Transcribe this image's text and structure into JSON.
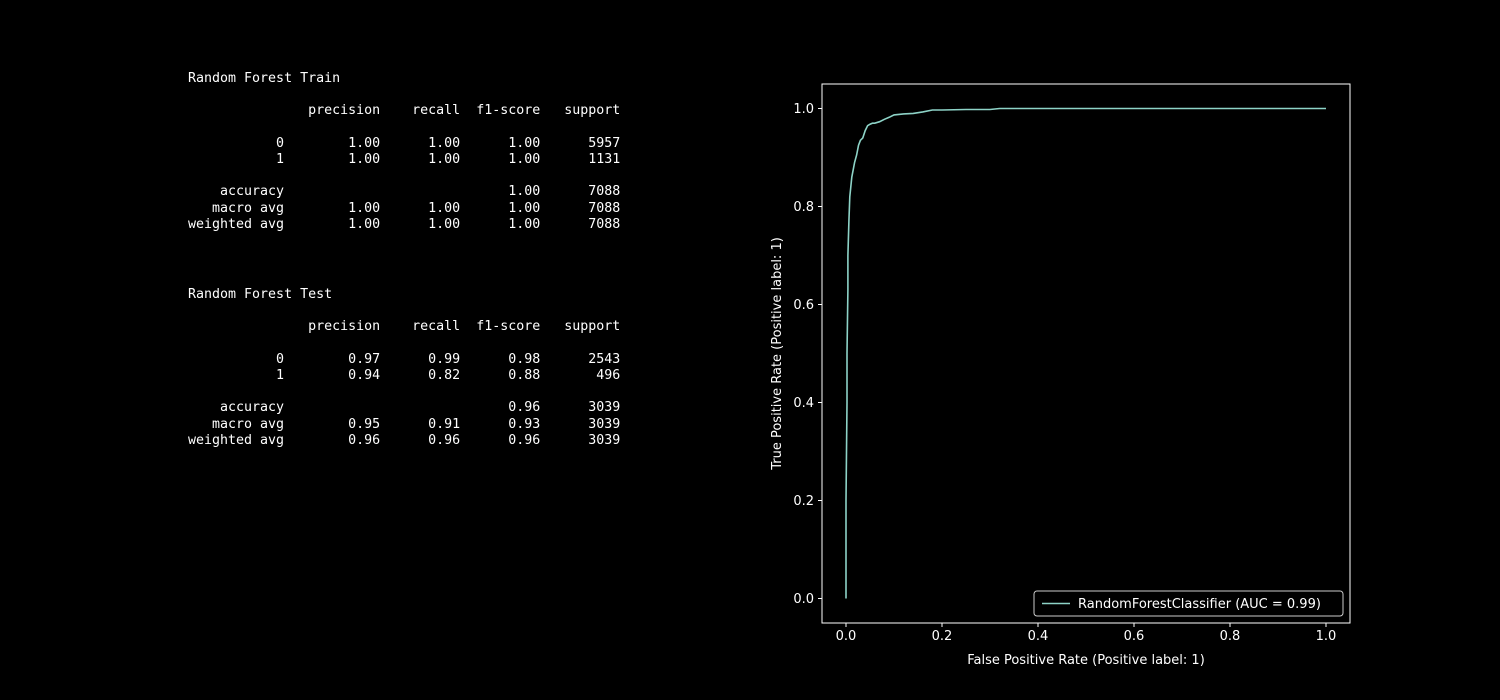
{
  "reports": [
    {
      "title": "Random Forest Train",
      "header": [
        "precision",
        "recall",
        "f1-score",
        "support"
      ],
      "rows": [
        {
          "label": "0",
          "precision": "1.00",
          "recall": "1.00",
          "f1": "1.00",
          "support": "5957"
        },
        {
          "label": "1",
          "precision": "1.00",
          "recall": "1.00",
          "f1": "1.00",
          "support": "1131"
        },
        null,
        {
          "label": "accuracy",
          "precision": "",
          "recall": "",
          "f1": "1.00",
          "support": "7088"
        },
        {
          "label": "macro avg",
          "precision": "1.00",
          "recall": "1.00",
          "f1": "1.00",
          "support": "7088"
        },
        {
          "label": "weighted avg",
          "precision": "1.00",
          "recall": "1.00",
          "f1": "1.00",
          "support": "7088"
        }
      ]
    },
    {
      "title": "Random Forest Test",
      "header": [
        "precision",
        "recall",
        "f1-score",
        "support"
      ],
      "rows": [
        {
          "label": "0",
          "precision": "0.97",
          "recall": "0.99",
          "f1": "0.98",
          "support": "2543"
        },
        {
          "label": "1",
          "precision": "0.94",
          "recall": "0.82",
          "f1": "0.88",
          "support": "496"
        },
        null,
        {
          "label": "accuracy",
          "precision": "",
          "recall": "",
          "f1": "0.96",
          "support": "3039"
        },
        {
          "label": "macro avg",
          "precision": "0.95",
          "recall": "0.91",
          "f1": "0.93",
          "support": "3039"
        },
        {
          "label": "weighted avg",
          "precision": "0.96",
          "recall": "0.96",
          "f1": "0.96",
          "support": "3039"
        }
      ]
    }
  ],
  "chart_data": {
    "type": "line",
    "xlabel": "False Positive Rate (Positive label: 1)",
    "ylabel": "True Positive Rate (Positive label: 1)",
    "xlim": [
      -0.05,
      1.05
    ],
    "ylim": [
      -0.05,
      1.05
    ],
    "xticks": [
      "0.0",
      "0.2",
      "0.4",
      "0.6",
      "0.8",
      "1.0"
    ],
    "yticks": [
      "0.0",
      "0.2",
      "0.4",
      "0.6",
      "0.8",
      "1.0"
    ],
    "grid": false,
    "legend_position": "lower-right",
    "series": [
      {
        "name": "RandomForestClassifier (AUC = 0.99)",
        "color": "#8dd3c7",
        "x": [
          0.0,
          0.0,
          0.002,
          0.002,
          0.004,
          0.004,
          0.006,
          0.008,
          0.01,
          0.012,
          0.015,
          0.018,
          0.022,
          0.026,
          0.03,
          0.035,
          0.04,
          0.045,
          0.05,
          0.055,
          0.06,
          0.07,
          0.08,
          0.09,
          0.1,
          0.12,
          0.14,
          0.16,
          0.18,
          0.2,
          0.25,
          0.3,
          0.32,
          0.35,
          0.4,
          0.5,
          0.6,
          0.7,
          0.8,
          0.9,
          1.0
        ],
        "y": [
          0.0,
          0.2,
          0.4,
          0.5,
          0.63,
          0.7,
          0.77,
          0.82,
          0.84,
          0.86,
          0.875,
          0.89,
          0.905,
          0.925,
          0.935,
          0.94,
          0.955,
          0.965,
          0.968,
          0.97,
          0.97,
          0.973,
          0.978,
          0.982,
          0.987,
          0.989,
          0.99,
          0.993,
          0.997,
          0.997,
          0.998,
          0.998,
          1.0,
          1.0,
          1.0,
          1.0,
          1.0,
          1.0,
          1.0,
          1.0,
          1.0
        ]
      }
    ]
  }
}
